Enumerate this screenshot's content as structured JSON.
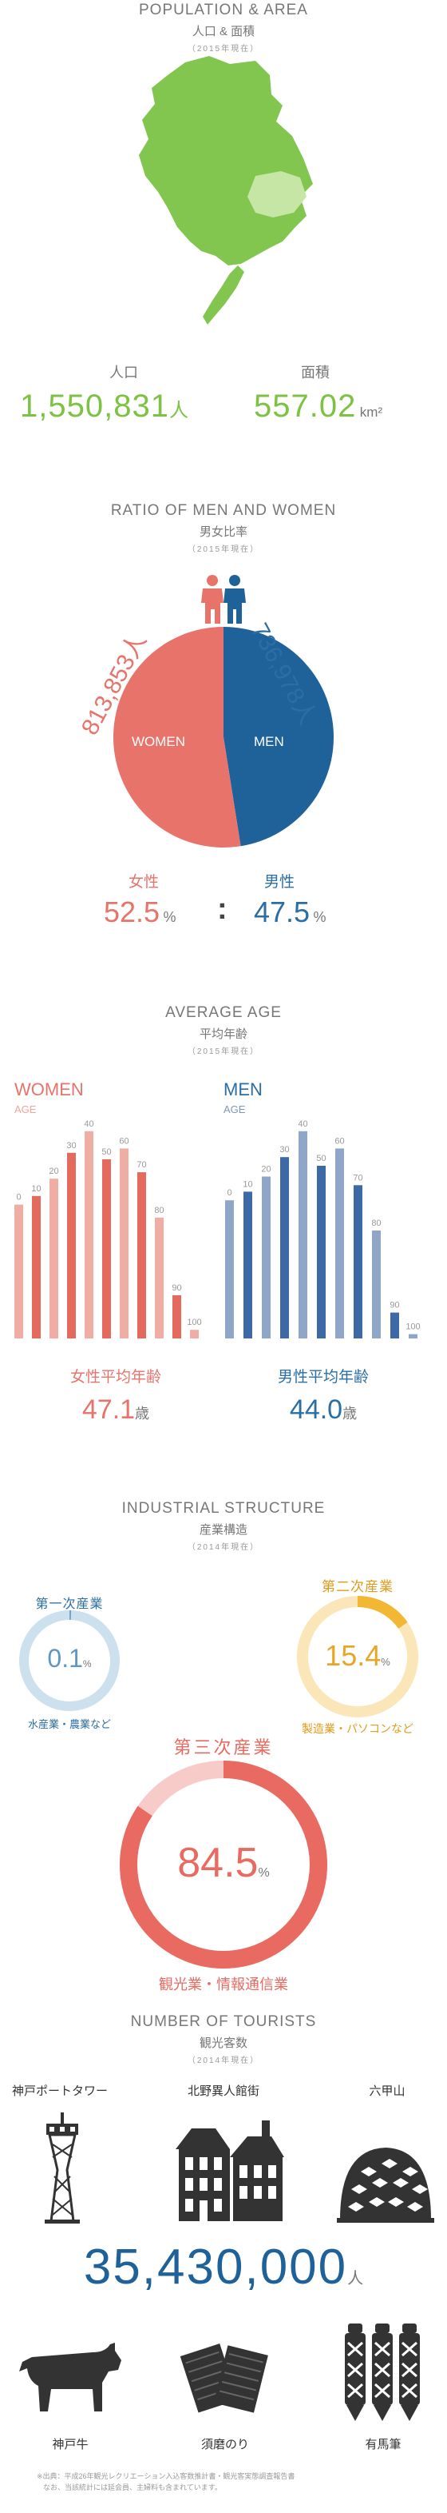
{
  "population": {
    "title": "POPULATION & AREA",
    "subtitle": "人口 & 面積",
    "date": "（2015年現在）",
    "pop_label": "人口",
    "pop_value": "1,550,831",
    "pop_unit": "人",
    "area_label": "面積",
    "area_value": "557.02",
    "area_unit": "km²"
  },
  "ratio": {
    "title": "RATIO OF MEN AND WOMEN",
    "subtitle": "男女比率",
    "date": "（2015年現在）",
    "women_count": "813,853人",
    "men_count": "736,978人",
    "women_label": "WOMEN",
    "men_label": "MEN",
    "women_jp": "女性",
    "men_jp": "男性",
    "women_pct": "52.5",
    "men_pct": "47.5",
    "pct_unit": "%",
    "separator": ":",
    "women_share": 0.525,
    "men_share": 0.475,
    "colors": {
      "women": "#e8736b",
      "men": "#1f6299"
    }
  },
  "age": {
    "title": "AVERAGE AGE",
    "subtitle": "平均年齢",
    "date": "（2015年現在）",
    "women_title": "WOMEN",
    "men_title": "MEN",
    "axis_label": "AGE",
    "women_avg_label": "女性平均年齢",
    "men_avg_label": "男性平均年齢",
    "women_avg": "47.1",
    "men_avg": "44.0",
    "avg_unit": "歳"
  },
  "chart_data": [
    {
      "type": "bar",
      "title": "WOMEN",
      "xlabel": "AGE",
      "categories": [
        "0",
        "10",
        "20",
        "30",
        "40",
        "50",
        "60",
        "70",
        "80",
        "90",
        "100"
      ],
      "values": [
        62,
        66,
        74,
        86,
        96,
        83,
        88,
        77,
        56,
        20,
        4
      ],
      "ylim": [
        0,
        100
      ]
    },
    {
      "type": "bar",
      "title": "MEN",
      "xlabel": "AGE",
      "categories": [
        "0",
        "10",
        "20",
        "30",
        "40",
        "50",
        "60",
        "70",
        "80",
        "90",
        "100"
      ],
      "values": [
        64,
        68,
        75,
        84,
        96,
        80,
        88,
        71,
        50,
        12,
        2
      ],
      "ylim": [
        0,
        100
      ]
    }
  ],
  "industry": {
    "title": "INDUSTRIAL STRUCTURE",
    "subtitle": "産業構造",
    "date": "（2014年現在）",
    "primary": {
      "name": "第一次産業",
      "value": "0.1",
      "unit": "%",
      "desc": "水産業・農業など",
      "share": 0.001,
      "color": "#6fa5cc"
    },
    "secondary": {
      "name": "第二次産業",
      "value": "15.4",
      "unit": "%",
      "desc": "製造業・パソコンなど",
      "share": 0.154,
      "color": "#f2b733"
    },
    "tertiary": {
      "name": "第三次産業",
      "value": "84.5",
      "unit": "%",
      "desc": "観光業・情報通信業",
      "share": 0.845,
      "color": "#e86a61"
    }
  },
  "tourists": {
    "title": "NUMBER OF TOURISTS",
    "subtitle": "観光客数",
    "date": "（2014年現在）",
    "spot1": "神戸ポートタワー",
    "spot2": "北野異人館街",
    "spot3": "六甲山",
    "count": "35,430,000",
    "count_unit": "人",
    "item1": "神戸牛",
    "item2": "須磨のり",
    "item3": "有馬筆",
    "note1": "※出典：平成26年観光レクリエーション入込客数推計書・観光客実態調査報告書",
    "note2": "なお、当該統計には延会員、主婦料も含まれています。"
  }
}
